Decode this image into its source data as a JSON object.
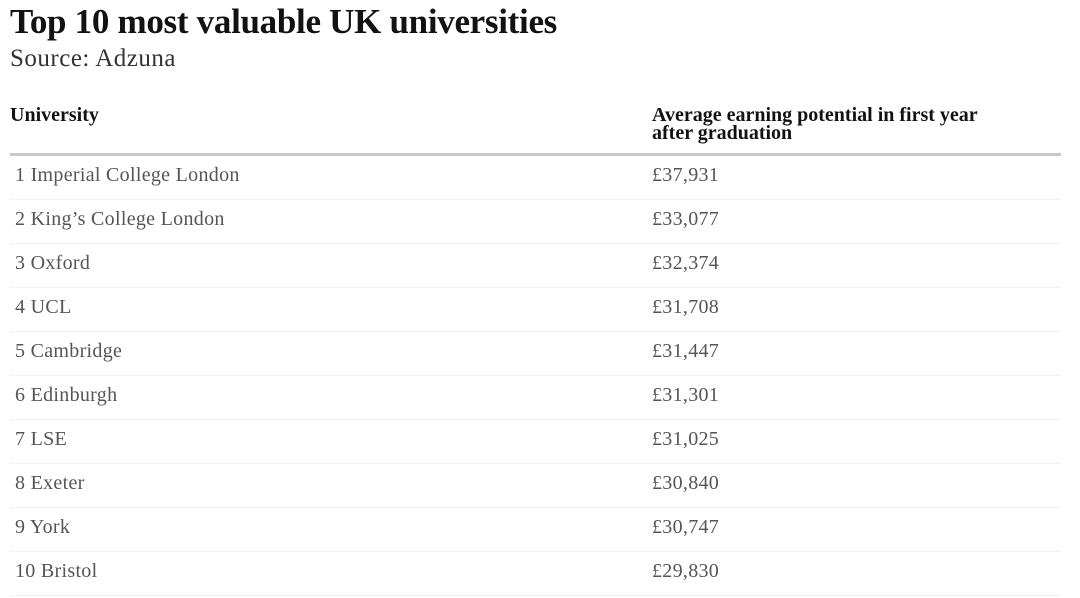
{
  "header": {
    "title": "Top 10 most valuable UK universities",
    "source": "Source: Adzuna"
  },
  "table": {
    "columns": [
      "University",
      "Average earning potential in first year after graduation"
    ],
    "rows": [
      [
        "1 Imperial College London",
        "£37,931"
      ],
      [
        "2 King’s College London",
        "£33,077"
      ],
      [
        "3 Oxford",
        "£32,374"
      ],
      [
        "4 UCL",
        "£31,708"
      ],
      [
        "5 Cambridge",
        "£31,447"
      ],
      [
        "6 Edinburgh",
        "£31,301"
      ],
      [
        "7 LSE",
        "£31,025"
      ],
      [
        "8 Exeter",
        "£30,840"
      ],
      [
        "9 York",
        "£30,747"
      ],
      [
        "10 Bristol",
        "£29,830"
      ]
    ]
  }
}
